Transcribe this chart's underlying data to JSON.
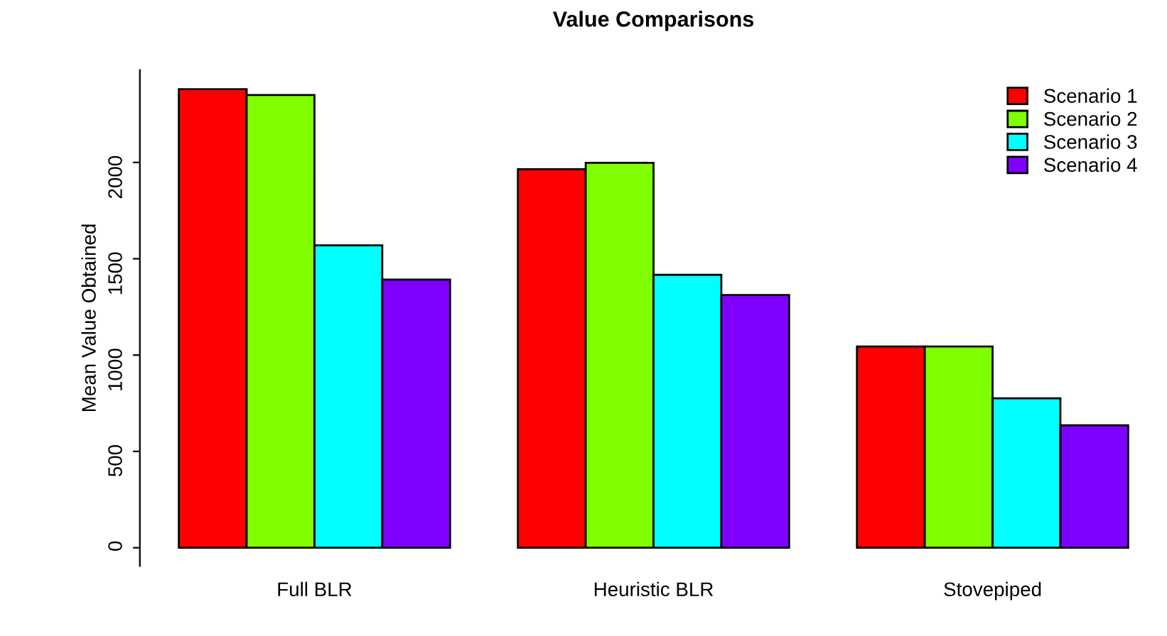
{
  "chart_data": {
    "type": "bar",
    "title": "Value Comparisons",
    "ylabel": "Mean Value Obtained",
    "categories": [
      "Full BLR",
      "Heuristic BLR",
      "Stovepiped"
    ],
    "series": [
      {
        "name": "Scenario 1",
        "color": "#ff0000",
        "values": [
          2380,
          1965,
          1045
        ]
      },
      {
        "name": "Scenario 2",
        "color": "#80ff00",
        "values": [
          2350,
          1998,
          1045
        ]
      },
      {
        "name": "Scenario 3",
        "color": "#00ffff",
        "values": [
          1570,
          1417,
          776
        ]
      },
      {
        "name": "Scenario 4",
        "color": "#8000ff",
        "values": [
          1392,
          1312,
          636
        ]
      }
    ],
    "ylim": [
      -95,
      2480
    ],
    "yticks": [
      0,
      500,
      1000,
      1500,
      2000
    ],
    "grid": false,
    "legend": "top right"
  }
}
